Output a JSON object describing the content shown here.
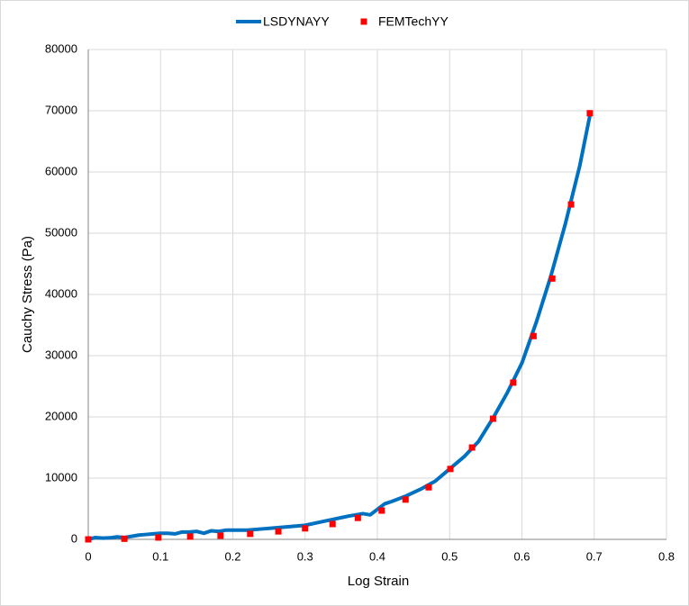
{
  "chart_data": {
    "type": "line",
    "xlabel": "Log Strain",
    "ylabel": "Cauchy Stress (Pa)",
    "xlim": [
      0,
      0.8
    ],
    "xticks": [
      0,
      0.1,
      0.2,
      0.3,
      0.4,
      0.5,
      0.6,
      0.7,
      0.8
    ],
    "ylim": [
      0,
      80000
    ],
    "yticks": [
      0,
      10000,
      20000,
      30000,
      40000,
      50000,
      60000,
      70000,
      80000
    ],
    "grid": true,
    "legend": "top",
    "series": [
      {
        "name": "LSDYNAYY",
        "color": "#0070c0",
        "style": "line",
        "x": [
          0,
          0.01,
          0.02,
          0.03,
          0.04,
          0.05,
          0.06,
          0.07,
          0.08,
          0.09,
          0.1,
          0.11,
          0.12,
          0.13,
          0.14,
          0.15,
          0.16,
          0.17,
          0.18,
          0.19,
          0.2,
          0.22,
          0.24,
          0.26,
          0.28,
          0.3,
          0.32,
          0.34,
          0.36,
          0.38,
          0.39,
          0.4,
          0.41,
          0.42,
          0.44,
          0.46,
          0.48,
          0.5,
          0.52,
          0.54,
          0.56,
          0.58,
          0.6,
          0.62,
          0.64,
          0.66,
          0.68,
          0.695
        ],
        "values": [
          0,
          300,
          200,
          250,
          400,
          300,
          500,
          700,
          800,
          900,
          1000,
          1000,
          900,
          1200,
          1200,
          1300,
          1000,
          1400,
          1300,
          1500,
          1500,
          1500,
          1700,
          1900,
          2100,
          2300,
          2800,
          3300,
          3800,
          4200,
          4000,
          4900,
          5800,
          6200,
          7100,
          8200,
          9500,
          11500,
          13500,
          16000,
          19800,
          24000,
          28800,
          35500,
          43000,
          51500,
          61000,
          69800
        ]
      },
      {
        "name": "FEMTechYY",
        "color": "#ff0000",
        "style": "marker",
        "x": [
          0,
          0.05,
          0.097,
          0.141,
          0.183,
          0.224,
          0.263,
          0.3,
          0.338,
          0.373,
          0.406,
          0.439,
          0.471,
          0.501,
          0.531,
          0.56,
          0.588,
          0.616,
          0.642,
          0.668,
          0.694
        ],
        "values": [
          0,
          100,
          300,
          450,
          600,
          900,
          1300,
          1800,
          2500,
          3500,
          4700,
          6500,
          8500,
          11500,
          15000,
          19700,
          25600,
          33200,
          42600,
          54700,
          69600
        ]
      }
    ]
  }
}
